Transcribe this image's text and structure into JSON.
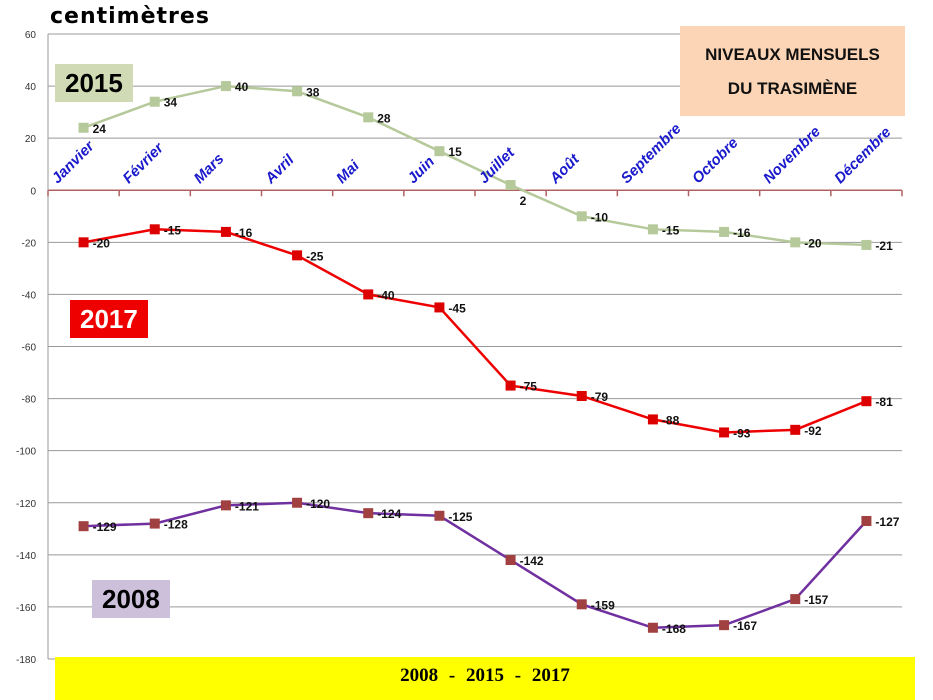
{
  "chart_data": {
    "type": "line",
    "title": "NIVEAUX MENSUELS DU TRASIMÈNE",
    "title_line1": "NIVEAUX MENSUELS",
    "title_line2": "DU TRASIMÈNE",
    "ylabel": "centimètres",
    "ylim": [
      -180,
      60
    ],
    "yticks": [
      60,
      40,
      20,
      0,
      -20,
      -40,
      -60,
      -80,
      -100,
      -120,
      -140,
      -160,
      -180
    ],
    "grid": true,
    "categories": [
      "Janvier",
      "Février",
      "Mars",
      "Avril",
      "Mai",
      "Juin",
      "Juillet",
      "Août",
      "Septembre",
      "Octobre",
      "Novembre",
      "Décembre"
    ],
    "series": [
      {
        "name": "2015",
        "line_color": "#b5c99a",
        "marker_color": "#b5c99a",
        "label_bg": "#d0dbb5",
        "label_fg": "#000000",
        "values": [
          24,
          34,
          40,
          38,
          28,
          15,
          2,
          -10,
          -15,
          -16,
          -20,
          -21
        ]
      },
      {
        "name": "2017",
        "line_color": "#ee0000",
        "marker_color": "#dd0000",
        "label_bg": "#ee0000",
        "label_fg": "#ffffff",
        "values": [
          -20,
          -15,
          -16,
          -25,
          -40,
          -45,
          -75,
          -79,
          -88,
          -93,
          -92,
          -81
        ]
      },
      {
        "name": "2008",
        "line_color": "#7030a0",
        "marker_color": "#a04040",
        "label_bg": "#ccc0da",
        "label_fg": "#000000",
        "values": [
          -129,
          -128,
          -121,
          -120,
          -124,
          -125,
          -142,
          -159,
          -168,
          -167,
          -157,
          -127
        ]
      }
    ],
    "footer": "2008 - 2015 - 2017"
  }
}
